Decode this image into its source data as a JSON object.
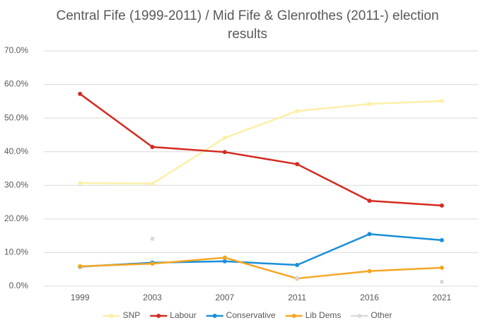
{
  "chart_data": {
    "type": "line",
    "title": "Central Fife (1999-2011) / Mid Fife & Glenrothes (2011-) election results",
    "categories": [
      "1999",
      "2003",
      "2007",
      "2011",
      "2016",
      "2021"
    ],
    "series": [
      {
        "name": "SNP",
        "color": "#fcefa7",
        "values": [
          30.7,
          30.5,
          44.1,
          52.1,
          54.2,
          55.1
        ]
      },
      {
        "name": "Labour",
        "color": "#d42a20",
        "values": [
          57.2,
          41.4,
          39.9,
          36.3,
          25.4,
          24.0
        ]
      },
      {
        "name": "Conservative",
        "color": "#1a8fd8",
        "values": [
          5.8,
          7.0,
          7.4,
          6.3,
          15.5,
          13.7
        ]
      },
      {
        "name": "Lib Dems",
        "color": "#f5a623",
        "values": [
          5.9,
          6.7,
          8.5,
          2.3,
          4.5,
          5.5
        ]
      },
      {
        "name": "Other",
        "color": "#d9d9d9",
        "values": [
          null,
          14.1,
          null,
          2.5,
          null,
          1.3
        ]
      }
    ],
    "ylim": [
      0,
      70
    ],
    "yticks": [
      {
        "value": 0,
        "label": "0.0%"
      },
      {
        "value": 10,
        "label": "10.0%"
      },
      {
        "value": 20,
        "label": "20.0%"
      },
      {
        "value": 30,
        "label": "30.0%"
      },
      {
        "value": 40,
        "label": "40.0%"
      },
      {
        "value": 50,
        "label": "50.0%"
      },
      {
        "value": 60,
        "label": "60.0%"
      },
      {
        "value": 70,
        "label": "70.0%"
      }
    ],
    "grid": true,
    "legend": "bottom"
  }
}
